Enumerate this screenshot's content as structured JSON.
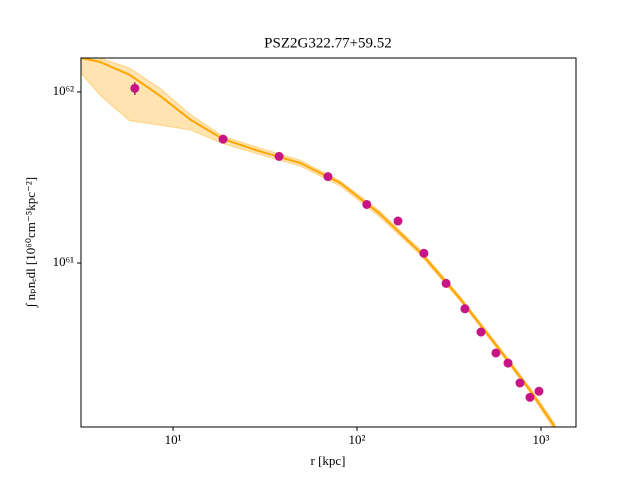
{
  "chart_data": {
    "type": "line",
    "title": "PSZ2G322.77+59.52",
    "x_label": "r [kpc]",
    "y_label": "∫ nₚnₑdl [10⁶⁰cm⁻⁵kpc⁻²]",
    "xscale": "log",
    "yscale": "log",
    "xlim": [
      3.16,
      1550
    ],
    "ylim": [
      1.1e+60,
      1.58e+62
    ],
    "xticks": [
      {
        "value": 10,
        "label": "10¹"
      },
      {
        "value": 100,
        "label": "10²"
      },
      {
        "value": 1000,
        "label": "10³"
      }
    ],
    "yticks": [
      {
        "value": 1e+61,
        "label": "10⁶¹"
      },
      {
        "value": 1e+62,
        "label": "10⁶²"
      }
    ],
    "series": [
      {
        "type": "band",
        "color": "#ffa500",
        "x": [
          3.16,
          4.0,
          5.8,
          8.5,
          12.4,
          18.7,
          29.7,
          49,
          81,
          133,
          220,
          363,
          598,
          871,
          1190
        ],
        "lower": [
          1.29e+62,
          9.6e+61,
          6.8e+61,
          6.4e+61,
          6e+61,
          5e+61,
          4.3e+61,
          3.7e+61,
          2.82e+61,
          1.86e+61,
          1.12e+61,
          6e+60,
          3e+60,
          1.75e+60,
          1.05e+60
        ],
        "upper": [
          1.62e+62,
          1.58e+62,
          1.38e+62,
          1.05e+62,
          7.4e+61,
          5.5e+61,
          4.7e+61,
          4e+61,
          3.02e+61,
          2.01e+61,
          1.2e+61,
          6.4e+60,
          3.2e+60,
          1.87e+60,
          1.15e+60
        ]
      },
      {
        "type": "line",
        "color": "#ffa500",
        "x": [
          3.16,
          4.0,
          5.8,
          8.5,
          12.4,
          18.7,
          29.7,
          49,
          81,
          133,
          220,
          363,
          598,
          871,
          1190
        ],
        "values": [
          1.58e+62,
          1.5e+62,
          1.26e+62,
          9.5e+61,
          6.9e+61,
          5.3e+61,
          4.5e+61,
          3.85e+61,
          2.94e+61,
          1.94e+61,
          1.16e+61,
          6.2e+60,
          3.1e+60,
          1.81e+60,
          1.1e+60
        ]
      },
      {
        "type": "scatter",
        "color": "#c71585",
        "x": [
          6.2,
          18.7,
          37.7,
          69.5,
          113,
          167,
          231,
          305,
          386,
          472,
          569,
          662,
          769,
          871,
          975
        ],
        "values": [
          1.05e+62,
          5.3e+61,
          4.2e+61,
          3.2e+61,
          2.2e+61,
          1.76e+61,
          1.14e+61,
          7.6e+60,
          5.4e+60,
          3.95e+60,
          2.98e+60,
          2.6e+60,
          1.99e+60,
          1.64e+60,
          1.78e+60
        ],
        "errors": [
          9e+60,
          1.5e+60,
          1e+60,
          7e+59,
          5e+59,
          4e+59,
          3e+59,
          2e+59,
          1.5e+59,
          1.2e+59,
          1e+59,
          1e+59,
          8e+58,
          8e+58,
          1e+59
        ]
      }
    ]
  }
}
